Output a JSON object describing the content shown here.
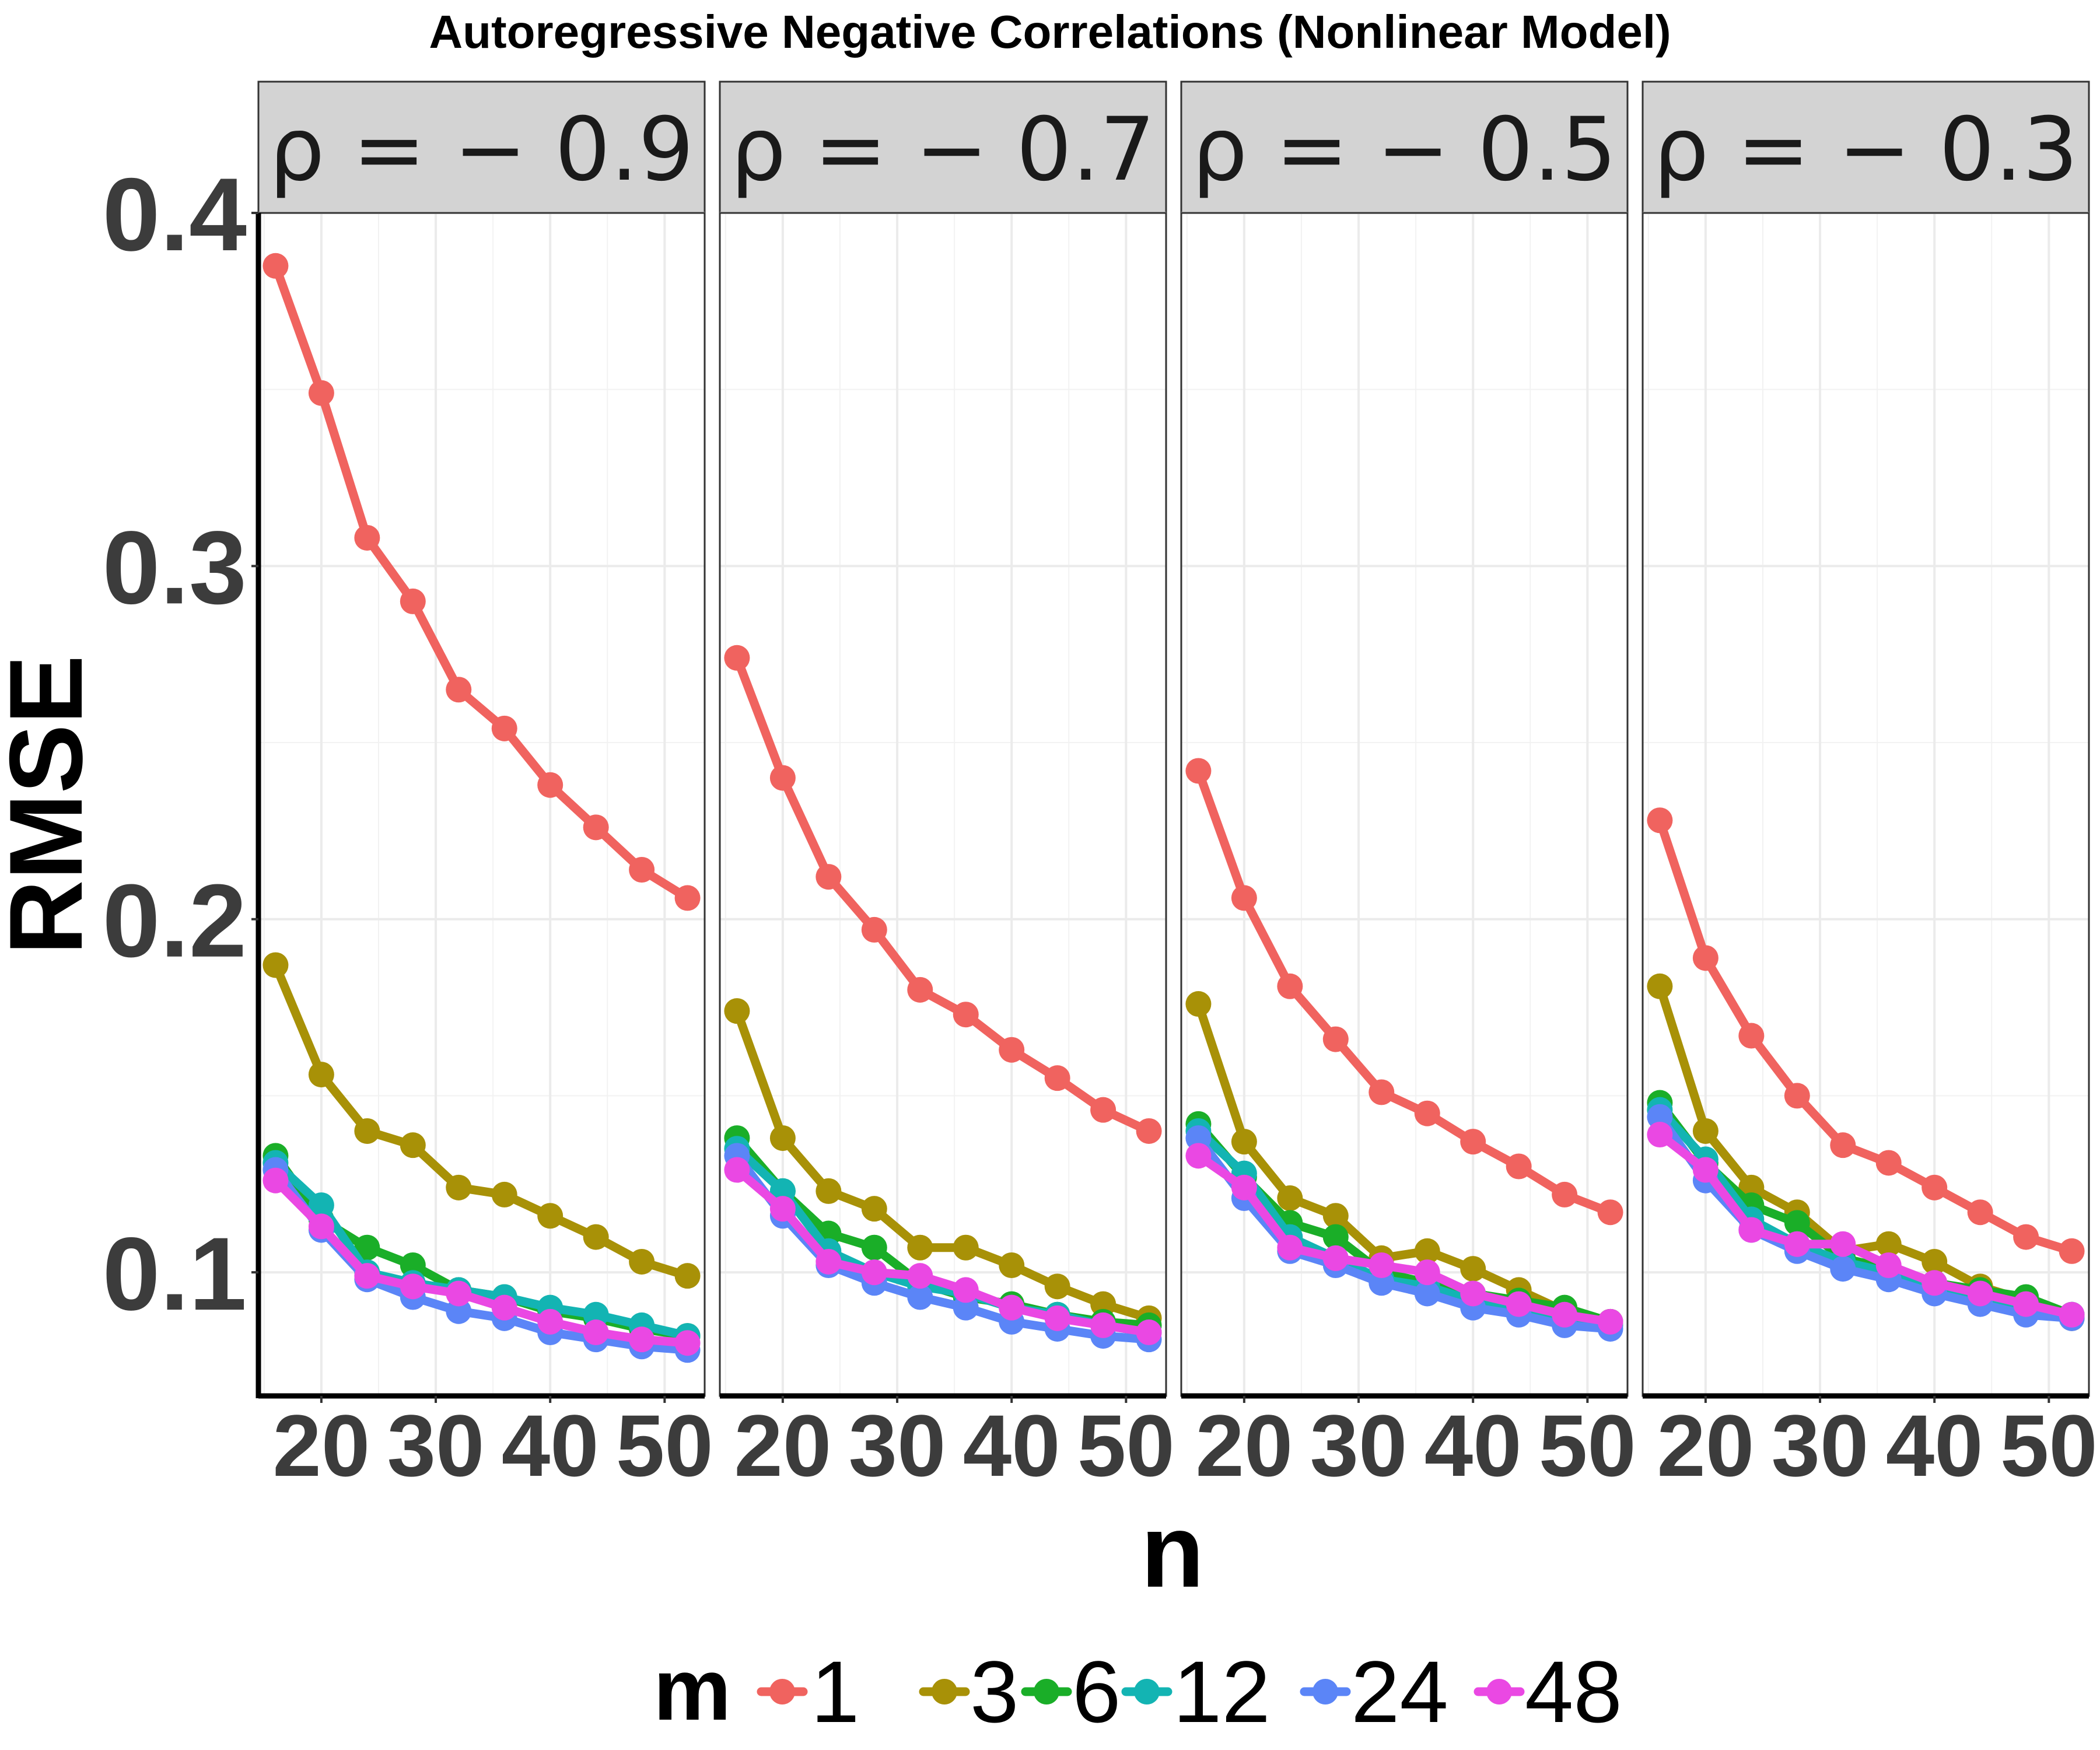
{
  "chart_data": {
    "type": "line",
    "title": "Autoregressive Negative Correlations (Nonlinear Model)",
    "xlabel": "n",
    "ylabel": "RMSE",
    "x": [
      16,
      20,
      24,
      28,
      32,
      36,
      40,
      44,
      48,
      52
    ],
    "xticks": [
      "20",
      "30",
      "40",
      "50"
    ],
    "xtick_values": [
      20,
      30,
      40,
      50
    ],
    "xlim": [
      14.5,
      53.5
    ],
    "yticks": [
      "0.1",
      "0.2",
      "0.3",
      "0.4"
    ],
    "ytick_values": [
      0.1,
      0.2,
      0.3,
      0.4
    ],
    "ylim": [
      0.065,
      0.4
    ],
    "legend_title": "m",
    "legend_position": "bottom",
    "grid": true,
    "panels": [
      {
        "label": "ρ = − 0.9",
        "series": [
          {
            "name": "1",
            "values": [
              0.385,
              0.349,
              0.308,
              0.29,
              0.265,
              0.254,
              0.238,
              0.226,
              0.214,
              0.206
            ]
          },
          {
            "name": "3",
            "values": [
              0.187,
              0.156,
              0.14,
              0.136,
              0.124,
              0.122,
              0.116,
              0.11,
              0.103,
              0.099
            ]
          },
          {
            "name": "6",
            "values": [
              0.133,
              0.115,
              0.107,
              0.102,
              0.095,
              0.093,
              0.089,
              0.087,
              0.084,
              0.082
            ]
          },
          {
            "name": "12",
            "values": [
              0.131,
              0.119,
              0.1,
              0.097,
              0.095,
              0.093,
              0.09,
              0.088,
              0.085,
              0.082
            ]
          },
          {
            "name": "24",
            "values": [
              0.129,
              0.112,
              0.098,
              0.093,
              0.089,
              0.087,
              0.083,
              0.081,
              0.079,
              0.078
            ]
          },
          {
            "name": "48",
            "values": [
              0.126,
              0.113,
              0.099,
              0.096,
              0.094,
              0.09,
              0.086,
              0.083,
              0.081,
              0.08
            ]
          }
        ]
      },
      {
        "label": "ρ = − 0.7",
        "series": [
          {
            "name": "1",
            "values": [
              0.274,
              0.24,
              0.212,
              0.197,
              0.18,
              0.173,
              0.163,
              0.155,
              0.146,
              0.14
            ]
          },
          {
            "name": "3",
            "values": [
              0.174,
              0.138,
              0.123,
              0.118,
              0.107,
              0.107,
              0.102,
              0.096,
              0.091,
              0.087
            ]
          },
          {
            "name": "6",
            "values": [
              0.138,
              0.123,
              0.111,
              0.107,
              0.097,
              0.093,
              0.091,
              0.088,
              0.086,
              0.085
            ]
          },
          {
            "name": "12",
            "values": [
              0.135,
              0.123,
              0.106,
              0.1,
              0.096,
              0.094,
              0.09,
              0.088,
              0.085,
              0.083
            ]
          },
          {
            "name": "24",
            "values": [
              0.133,
              0.116,
              0.102,
              0.097,
              0.093,
              0.09,
              0.086,
              0.084,
              0.082,
              0.081
            ]
          },
          {
            "name": "48",
            "values": [
              0.129,
              0.118,
              0.103,
              0.1,
              0.099,
              0.095,
              0.09,
              0.087,
              0.085,
              0.083
            ]
          }
        ]
      },
      {
        "label": "ρ = − 0.5",
        "series": [
          {
            "name": "1",
            "values": [
              0.242,
              0.206,
              0.181,
              0.166,
              0.151,
              0.145,
              0.137,
              0.13,
              0.122,
              0.117
            ]
          },
          {
            "name": "3",
            "values": [
              0.176,
              0.137,
              0.121,
              0.116,
              0.104,
              0.106,
              0.101,
              0.095,
              0.089,
              0.086
            ]
          },
          {
            "name": "6",
            "values": [
              0.142,
              0.127,
              0.114,
              0.11,
              0.1,
              0.097,
              0.094,
              0.092,
              0.09,
              0.086
            ]
          },
          {
            "name": "12",
            "values": [
              0.14,
              0.128,
              0.11,
              0.104,
              0.098,
              0.096,
              0.092,
              0.09,
              0.087,
              0.085
            ]
          },
          {
            "name": "24",
            "values": [
              0.138,
              0.121,
              0.106,
              0.102,
              0.097,
              0.094,
              0.09,
              0.088,
              0.085,
              0.084
            ]
          },
          {
            "name": "48",
            "values": [
              0.133,
              0.124,
              0.107,
              0.104,
              0.102,
              0.1,
              0.094,
              0.091,
              0.088,
              0.086
            ]
          }
        ]
      },
      {
        "label": "ρ = − 0.3",
        "series": [
          {
            "name": "1",
            "values": [
              0.228,
              0.189,
              0.167,
              0.15,
              0.136,
              0.131,
              0.124,
              0.117,
              0.11,
              0.106
            ]
          },
          {
            "name": "3",
            "values": [
              0.181,
              0.14,
              0.124,
              0.117,
              0.106,
              0.108,
              0.103,
              0.096,
              0.092,
              0.087
            ]
          },
          {
            "name": "6",
            "values": [
              0.148,
              0.131,
              0.119,
              0.114,
              0.104,
              0.101,
              0.097,
              0.095,
              0.093,
              0.088
            ]
          },
          {
            "name": "12",
            "values": [
              0.146,
              0.132,
              0.115,
              0.108,
              0.103,
              0.1,
              0.096,
              0.093,
              0.09,
              0.088
            ]
          },
          {
            "name": "24",
            "values": [
              0.144,
              0.126,
              0.112,
              0.106,
              0.101,
              0.098,
              0.094,
              0.091,
              0.088,
              0.087
            ]
          },
          {
            "name": "48",
            "values": [
              0.139,
              0.129,
              0.112,
              0.108,
              0.108,
              0.102,
              0.097,
              0.094,
              0.091,
              0.088
            ]
          }
        ]
      }
    ]
  },
  "colors": {
    "1": "#F0635F",
    "3": "#A89107",
    "6": "#1AAE28",
    "12": "#13B4B3",
    "24": "#5B85F7",
    "48": "#EA48E3"
  },
  "legend": {
    "title": "m",
    "items": [
      "1",
      "3",
      "6",
      "12",
      "24",
      "48"
    ]
  }
}
